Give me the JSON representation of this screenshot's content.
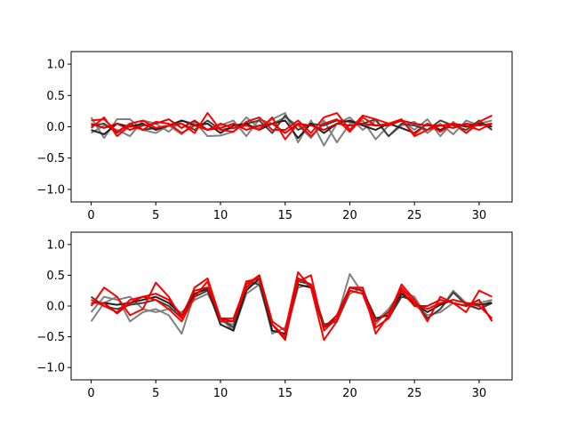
{
  "chart_data": [
    {
      "type": "line",
      "title": "",
      "xlabel": "",
      "ylabel": "",
      "xlim": [
        -1.55,
        32.55
      ],
      "ylim": [
        -1.2,
        1.2
      ],
      "xticks": [
        0,
        5,
        10,
        15,
        20,
        25,
        30
      ],
      "yticks": [
        -1.0,
        -0.5,
        0.0,
        0.5,
        1.0
      ],
      "ytick_labels": [
        "−1.0",
        "−0.5",
        "0.0",
        "0.5",
        "1.0"
      ],
      "x": [
        0,
        1,
        2,
        3,
        4,
        5,
        6,
        7,
        8,
        9,
        10,
        11,
        12,
        13,
        14,
        15,
        16,
        17,
        18,
        19,
        20,
        21,
        22,
        23,
        24,
        25,
        26,
        27,
        28,
        29,
        30,
        31
      ],
      "grid": false,
      "legend": "none",
      "series": [
        {
          "color": "#808080",
          "values": [
            0.15,
            -0.18,
            0.12,
            0.12,
            -0.05,
            -0.1,
            0.02,
            -0.12,
            0.08,
            -0.15,
            -0.14,
            -0.08,
            0.15,
            -0.02,
            0.12,
            0.22,
            -0.25,
            0.1,
            -0.3,
            0.05,
            0.15,
            -0.05,
            0.1,
            -0.15,
            0.02,
            0.08,
            -0.1,
            0.05,
            -0.12,
            0.1,
            0.02,
            0.05
          ]
        },
        {
          "color": "#808080",
          "values": [
            -0.1,
            0.02,
            -0.05,
            -0.15,
            0.1,
            0.05,
            -0.08,
            0.1,
            0.05,
            -0.05,
            0.02,
            0.1,
            -0.15,
            0.12,
            0.05,
            0.15,
            0.02,
            -0.18,
            0.1,
            -0.25,
            0.05,
            0.1,
            -0.2,
            0.02,
            0.1,
            -0.05,
            0.12,
            -0.15,
            0.08,
            -0.1,
            0.05,
            0.1
          ]
        },
        {
          "color": "#404040",
          "values": [
            0.02,
            0.05,
            -0.1,
            0.05,
            -0.05,
            -0.02,
            0.02,
            0.05,
            -0.05,
            0.1,
            -0.05,
            -0.02,
            0.05,
            0.1,
            -0.1,
            0.18,
            -0.05,
            0.05,
            0.02,
            0.1,
            0.08,
            0.05,
            0.12,
            -0.15,
            0.05,
            0.02,
            -0.05,
            0.1,
            0.02,
            -0.05,
            0.1,
            -0.05
          ]
        },
        {
          "color": "#202020",
          "values": [
            -0.05,
            -0.12,
            0.05,
            0.0,
            0.05,
            -0.05,
            0.02,
            0.1,
            0.02,
            0.05,
            -0.1,
            0.02,
            0.05,
            -0.05,
            0.05,
            0.1,
            -0.18,
            0.05,
            -0.1,
            0.05,
            0.1,
            0.02,
            -0.05,
            0.05,
            -0.02,
            -0.1,
            0.05,
            -0.05,
            0.05,
            0.0,
            0.05,
            0.0
          ]
        },
        {
          "color": "#ff0000",
          "values": [
            0.1,
            0.12,
            -0.08,
            0.05,
            0.1,
            -0.02,
            0.02,
            0.05,
            -0.1,
            0.22,
            -0.05,
            -0.08,
            0.08,
            0.15,
            -0.05,
            -0.05,
            0.1,
            -0.1,
            0.15,
            0.22,
            -0.05,
            0.18,
            0.12,
            0.05,
            0.1,
            -0.12,
            0.05,
            -0.08,
            0.05,
            0.02,
            -0.05,
            0.05
          ]
        },
        {
          "color": "#ff0000",
          "values": [
            -0.02,
            0.15,
            -0.15,
            0.02,
            -0.05,
            0.08,
            0.05,
            -0.1,
            0.02,
            -0.05,
            0.05,
            -0.02,
            0.02,
            -0.05,
            0.15,
            -0.2,
            0.05,
            -0.15,
            0.05,
            0.12,
            -0.08,
            0.15,
            0.02,
            0.05,
            0.12,
            -0.15,
            -0.05,
            0.02,
            0.05,
            -0.1,
            0.08,
            0.18
          ]
        },
        {
          "color": "#e00000",
          "values": [
            0.05,
            -0.02,
            0.05,
            -0.05,
            0.02,
            0.05,
            0.12,
            -0.02,
            0.1,
            -0.05,
            -0.02,
            0.05,
            -0.05,
            0.02,
            0.05,
            -0.1,
            0.05,
            0.02,
            -0.05,
            0.05,
            0.02,
            0.05,
            0.02,
            0.02,
            0.1,
            0.05,
            0.02,
            0.02,
            -0.02,
            0.05,
            0.02,
            0.05
          ]
        }
      ]
    },
    {
      "type": "line",
      "title": "",
      "xlabel": "",
      "ylabel": "",
      "xlim": [
        -1.55,
        32.55
      ],
      "ylim": [
        -1.2,
        1.2
      ],
      "xticks": [
        0,
        5,
        10,
        15,
        20,
        25,
        30
      ],
      "yticks": [
        -1.0,
        -0.5,
        0.0,
        0.5,
        1.0
      ],
      "ytick_labels": [
        "−1.0",
        "−0.5",
        "0.0",
        "0.5",
        "1.0"
      ],
      "x": [
        0,
        1,
        2,
        3,
        4,
        5,
        6,
        7,
        8,
        9,
        10,
        11,
        12,
        13,
        14,
        15,
        16,
        17,
        18,
        19,
        20,
        21,
        22,
        23,
        24,
        25,
        26,
        27,
        28,
        29,
        30,
        31
      ],
      "grid": false,
      "legend": "none",
      "series": [
        {
          "color": "#808080",
          "values": [
            -0.25,
            0.05,
            0.15,
            -0.25,
            -0.1,
            -0.05,
            -0.15,
            -0.45,
            0.2,
            0.3,
            -0.25,
            -0.3,
            0.3,
            0.4,
            -0.45,
            -0.35,
            0.35,
            0.3,
            -0.35,
            -0.2,
            0.52,
            0.2,
            -0.25,
            -0.05,
            0.25,
            0.15,
            -0.2,
            -0.05,
            0.25,
            0.05,
            -0.05,
            0.1
          ]
        },
        {
          "color": "#808080",
          "values": [
            -0.1,
            0.15,
            0.1,
            0.15,
            -0.05,
            -0.1,
            -0.05,
            -0.1,
            0.1,
            0.2,
            -0.2,
            -0.4,
            0.2,
            0.35,
            -0.3,
            -0.5,
            0.3,
            0.35,
            -0.3,
            -0.25,
            0.2,
            0.3,
            -0.3,
            -0.05,
            0.2,
            0.02,
            -0.15,
            -0.1,
            0.05,
            0.0,
            0.05,
            0.1
          ]
        },
        {
          "color": "#404040",
          "values": [
            0.15,
            0.0,
            -0.05,
            0.02,
            0.05,
            0.1,
            0.0,
            -0.2,
            0.15,
            0.25,
            -0.2,
            -0.35,
            0.4,
            0.35,
            -0.4,
            -0.45,
            0.4,
            0.35,
            -0.3,
            -0.25,
            0.25,
            0.2,
            -0.35,
            -0.2,
            0.15,
            0.1,
            -0.2,
            -0.05,
            0.22,
            0.02,
            -0.05,
            0.05
          ]
        },
        {
          "color": "#202020",
          "values": [
            0.05,
            0.05,
            0.02,
            0.05,
            0.1,
            0.15,
            0.05,
            -0.15,
            0.2,
            0.28,
            -0.3,
            -0.4,
            0.25,
            0.45,
            -0.4,
            -0.45,
            0.35,
            0.3,
            -0.35,
            -0.2,
            0.3,
            0.25,
            -0.2,
            -0.15,
            0.2,
            0.05,
            -0.1,
            0.02,
            0.1,
            0.05,
            0.02,
            0.05
          ]
        },
        {
          "color": "#ff0000",
          "values": [
            0.0,
            0.3,
            0.15,
            -0.15,
            -0.05,
            0.38,
            0.15,
            -0.2,
            0.3,
            0.45,
            -0.2,
            -0.2,
            0.35,
            0.5,
            -0.25,
            -0.4,
            0.55,
            0.3,
            -0.55,
            -0.25,
            0.3,
            0.3,
            -0.45,
            -0.15,
            0.35,
            0.1,
            -0.25,
            0.15,
            0.05,
            -0.1,
            0.25,
            0.15
          ]
        },
        {
          "color": "#ff0000",
          "values": [
            0.1,
            0.0,
            -0.1,
            0.1,
            0.15,
            0.1,
            -0.05,
            -0.25,
            0.15,
            0.4,
            -0.25,
            -0.25,
            0.4,
            0.45,
            -0.3,
            -0.5,
            0.4,
            0.5,
            -0.4,
            -0.2,
            0.25,
            0.2,
            -0.35,
            -0.2,
            0.3,
            0.05,
            -0.05,
            0.05,
            0.1,
            0.05,
            0.0,
            -0.2
          ]
        },
        {
          "color": "#e00000",
          "values": [
            0.05,
            0.05,
            -0.12,
            0.05,
            0.15,
            0.2,
            0.1,
            -0.15,
            0.25,
            0.3,
            -0.2,
            -0.25,
            0.3,
            0.5,
            -0.3,
            -0.55,
            0.45,
            0.35,
            -0.35,
            -0.15,
            0.3,
            0.25,
            -0.25,
            -0.1,
            0.25,
            0.0,
            0.0,
            0.1,
            0.05,
            0.0,
            0.1,
            -0.25
          ]
        }
      ]
    }
  ]
}
